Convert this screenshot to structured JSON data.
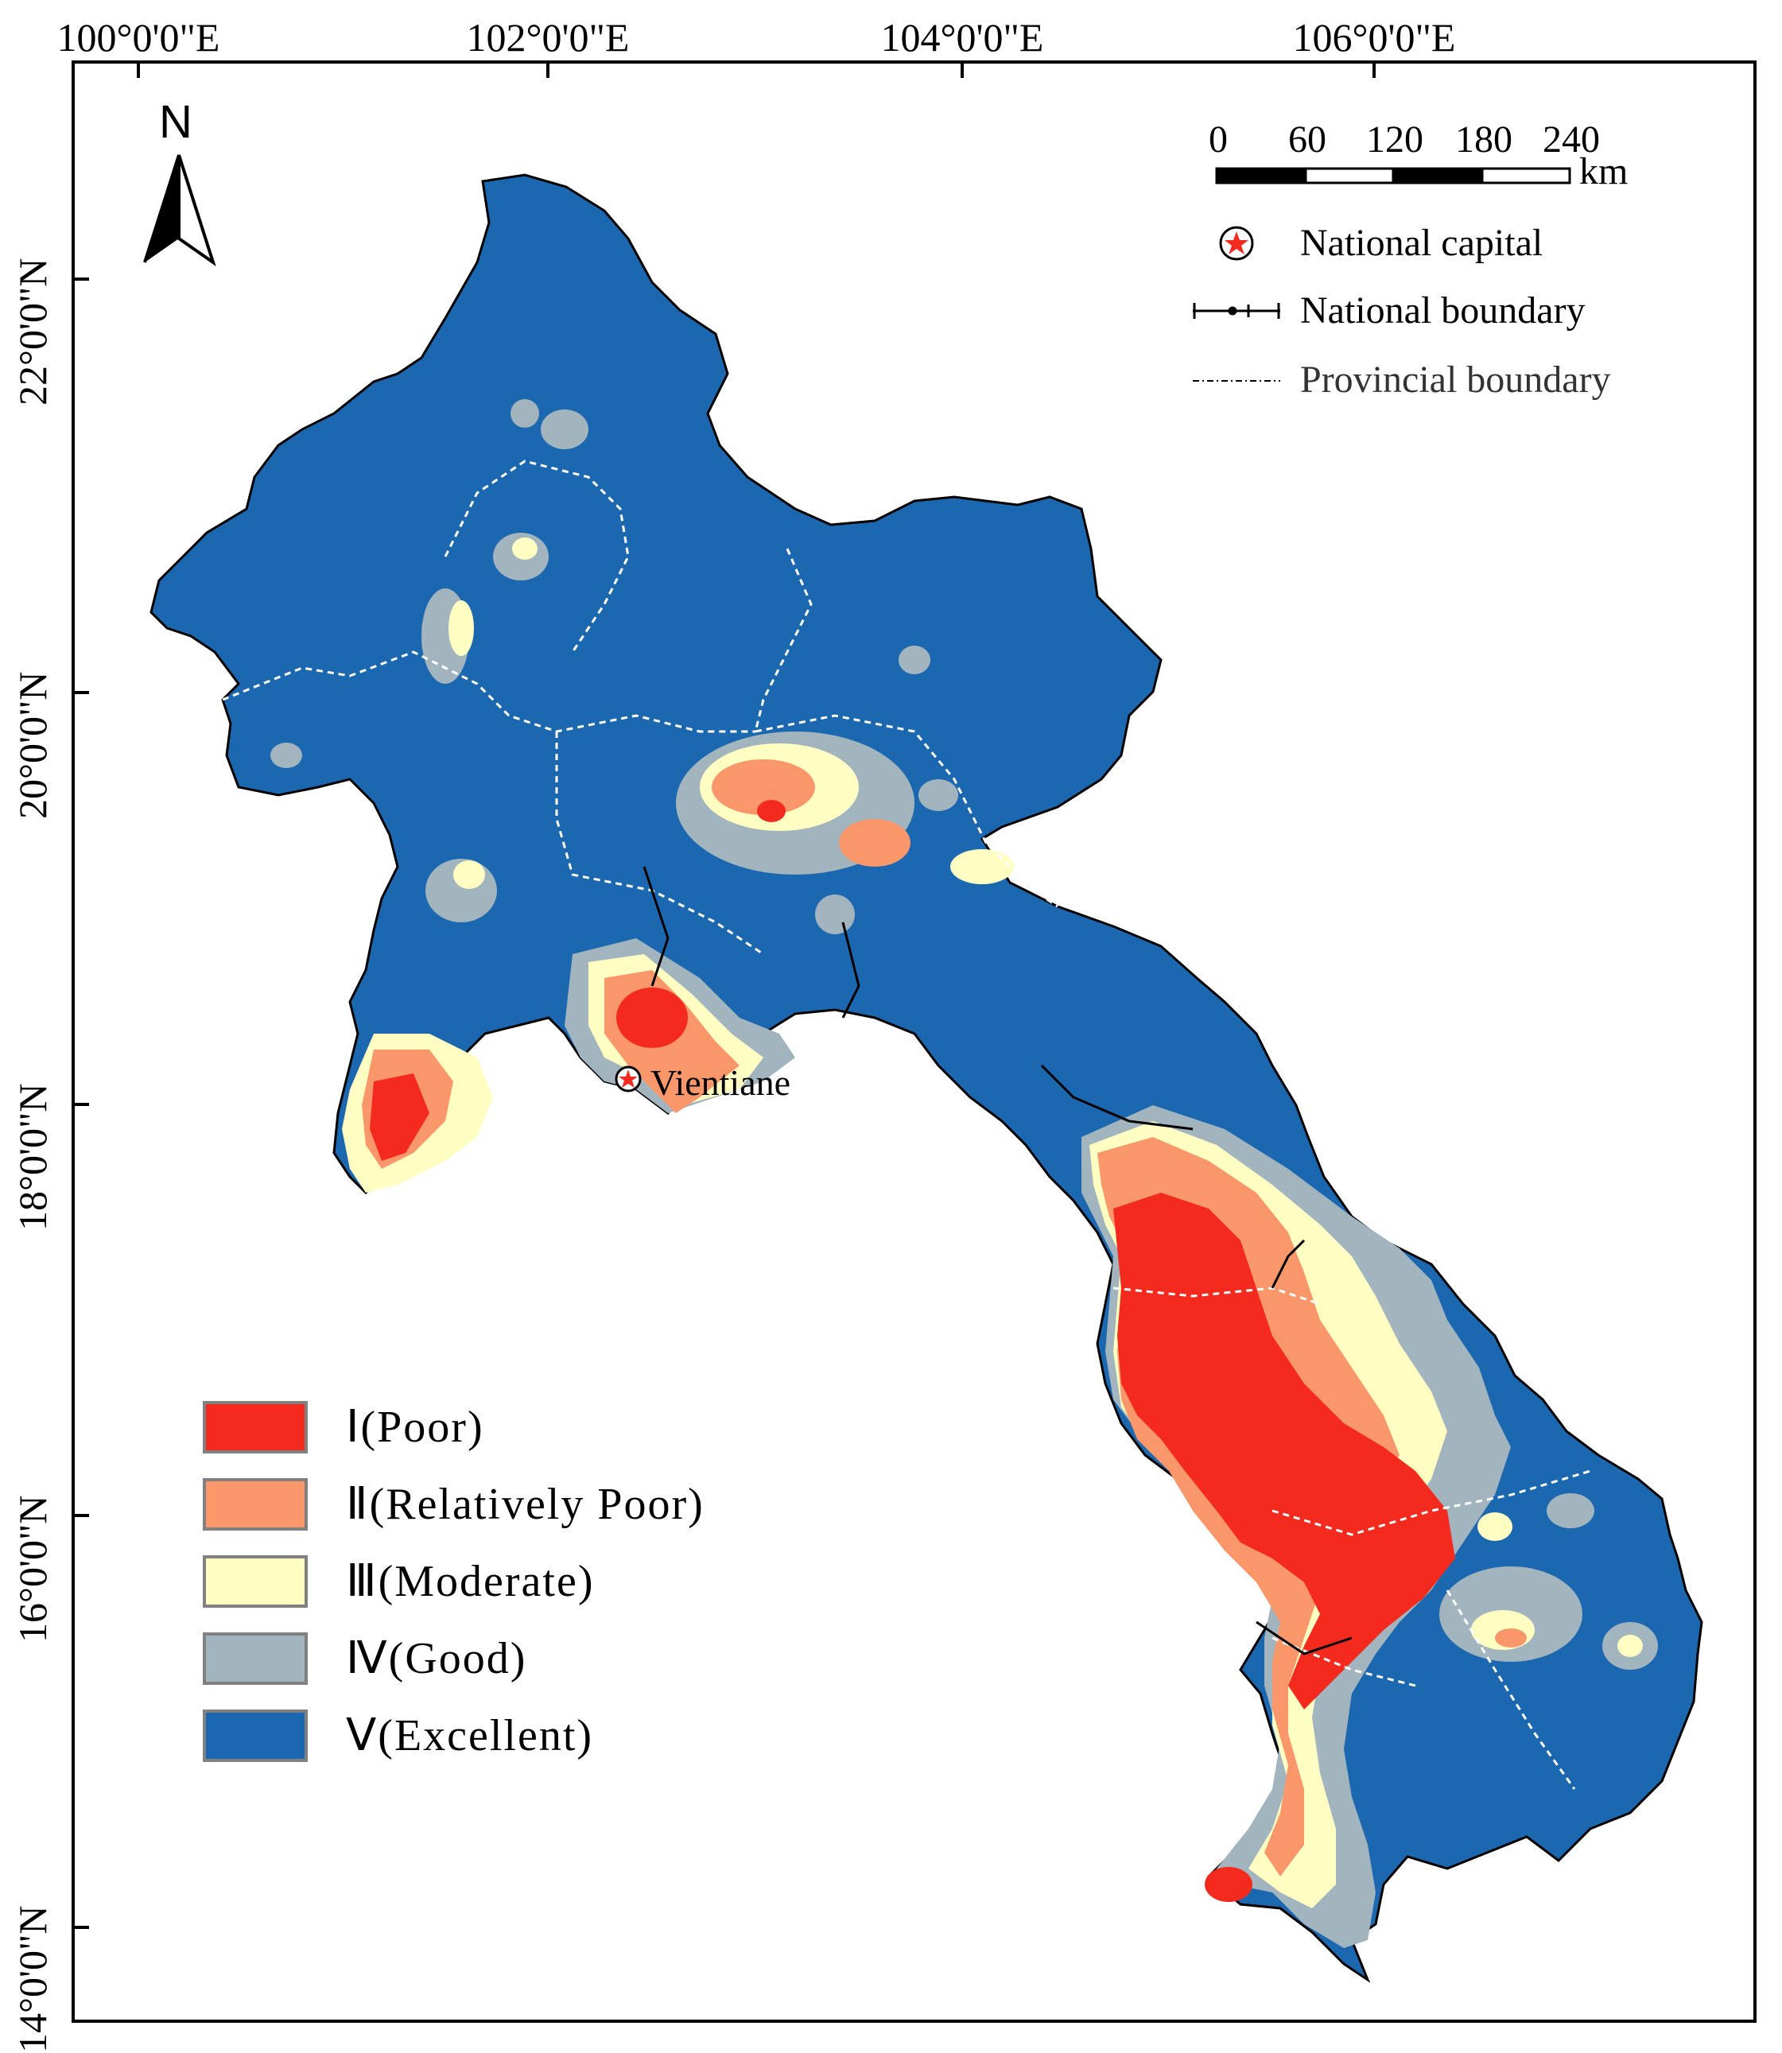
{
  "map": {
    "axes": {
      "longitude_labels": [
        "100°0'0\"E",
        "102°0'0\"E",
        "104°0'0\"E",
        "106°0'0\"E"
      ],
      "latitude_labels": [
        "22°0'0\"N",
        "20°0'0\"N",
        "18°0'0\"N",
        "16°0'0\"N",
        "14°0'0\"N"
      ]
    },
    "north_arrow": {
      "label": "N",
      "icon": "north-arrow-icon"
    },
    "scale_bar": {
      "ticks": [
        "0",
        "60",
        "120",
        "180",
        "240"
      ],
      "unit": "km"
    },
    "key": {
      "capital": "National capital",
      "national_boundary": "National boundary",
      "provincial_boundary": "Provincial boundary"
    },
    "capital_city": {
      "name": "Vientiane",
      "icon": "star-icon"
    },
    "legend": [
      {
        "label": "Ⅰ(Poor)",
        "color": "#f52a1f"
      },
      {
        "label": "Ⅱ(Relatively Poor)",
        "color": "#f9976a"
      },
      {
        "label": "Ⅲ(Moderate)",
        "color": "#fefec3"
      },
      {
        "label": "Ⅳ(Good)",
        "color": "#a2b5be"
      },
      {
        "label": "Ⅴ(Excellent)",
        "color": "#1c68b0"
      }
    ]
  }
}
